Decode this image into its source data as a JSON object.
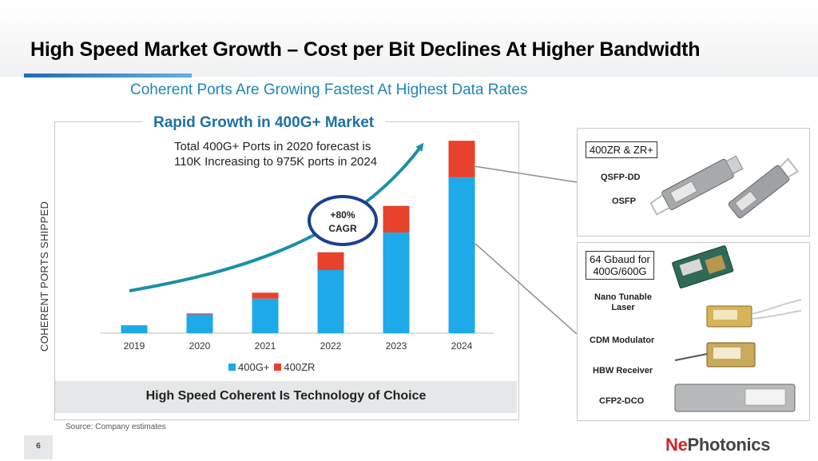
{
  "page": {
    "title": "High Speed Market Growth – Cost per Bit Declines At Higher Bandwidth",
    "subtitle": "Coherent Ports Are Growing Fastest At Highest Data Rates",
    "source": "Source: Company estimates",
    "page_number": "6",
    "logo": {
      "part1": "Ne",
      "part2": "Photonics"
    }
  },
  "chart_panel": {
    "heading": "Rapid Growth in 400G+ Market",
    "note_line1": "Total 400G+ Ports in 2020 forecast is",
    "note_line2": "110K Increasing to 975K ports in 2024",
    "cagr_pct": "+80%",
    "cagr_label": "CAGR",
    "footer": "High Speed Coherent Is Technology of Choice"
  },
  "chart_data": {
    "type": "bar",
    "stacked": true,
    "categories": [
      "2019",
      "2020",
      "2021",
      "2022",
      "2023",
      "2024"
    ],
    "series": [
      {
        "name": "400G+",
        "values": [
          8,
          19,
          35,
          64,
          102,
          158
        ],
        "color": "#1ea9e8"
      },
      {
        "name": "400ZR",
        "values": [
          0,
          1,
          6,
          18,
          27,
          37
        ],
        "color": "#e8412c"
      }
    ],
    "ylabel": "COHERENT PORTS SHIPPED",
    "ylim": [
      0,
      200
    ],
    "grid": false,
    "legend": "bottom"
  },
  "products": {
    "group_a": {
      "callout": "400ZR & ZR+",
      "items": [
        "QSFP-DD",
        "OSFP"
      ]
    },
    "group_b": {
      "callout_line1": "64 Gbaud for",
      "callout_line2": "400G/600G",
      "items": [
        "Nano Tunable Laser",
        "CDM Modulator",
        "HBW Receiver",
        "CFP2-DCO"
      ]
    }
  }
}
